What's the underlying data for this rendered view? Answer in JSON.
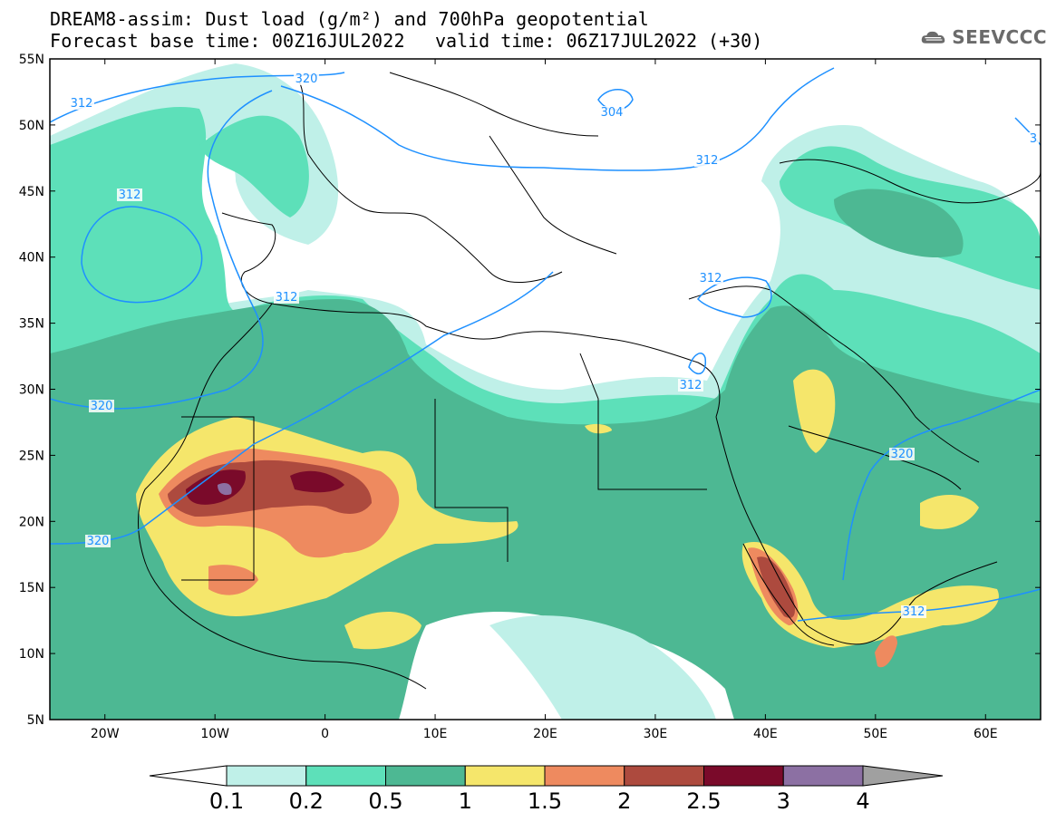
{
  "title": {
    "line1": "DREAM8-assim: Dust load (g/m²) and 700hPa geopotential",
    "line2": "Forecast base time: 00Z16JUL2022",
    "valid": "valid time: 06Z17JUL2022 (+30)"
  },
  "logo": {
    "text": "SEEVCCC",
    "icon": "cloud-icon"
  },
  "map": {
    "lat_labels": [
      "55N",
      "50N",
      "45N",
      "40N",
      "35N",
      "30N",
      "25N",
      "20N",
      "15N",
      "10N",
      "5N"
    ],
    "lon_labels": [
      "20W",
      "10W",
      "0",
      "10E",
      "20E",
      "30E",
      "40E",
      "50E",
      "60E"
    ],
    "extent": {
      "lon": [
        -25,
        65
      ],
      "lat": [
        5,
        55
      ]
    },
    "contour_labels": [
      "312",
      "320",
      "304",
      "312",
      "312",
      "320",
      "320",
      "312",
      "312",
      "312",
      "320",
      "312",
      "3"
    ]
  },
  "colorbar": {
    "levels": [
      "0.1",
      "0.2",
      "0.5",
      "1",
      "1.5",
      "2",
      "2.5",
      "3",
      "4"
    ],
    "colors": [
      "#bff0e8",
      "#5de0b9",
      "#4db893",
      "#f5e66b",
      "#ee8a5f",
      "#ad4a3e",
      "#7a0a2a",
      "#8c70a3"
    ],
    "under_color": "#ffffff",
    "over_color": "#a0a0a0"
  }
}
